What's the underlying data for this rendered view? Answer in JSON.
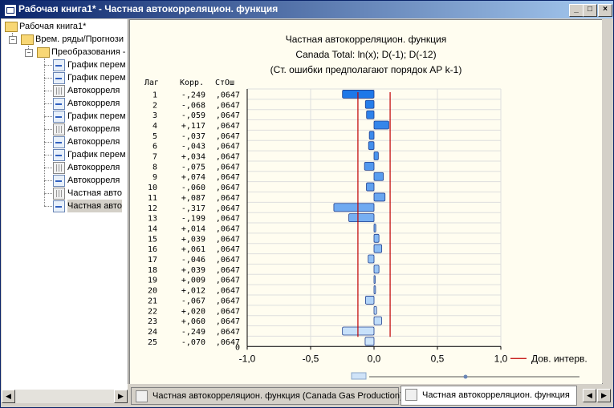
{
  "window": {
    "title": "Рабочая книга1* - Частная автокорреляцион. функция"
  },
  "tree": {
    "root": "Рабочая книга1*",
    "level1": "Врем. ряды/Прогнози",
    "level2": "Преобразования -",
    "items": [
      {
        "label": "График перем",
        "icon": "graph-icon"
      },
      {
        "label": "График перем",
        "icon": "graph-icon"
      },
      {
        "label": "Автокорреля",
        "icon": "spreadsheet-icon"
      },
      {
        "label": "Автокорреля",
        "icon": "graph-icon"
      },
      {
        "label": "График перем",
        "icon": "graph-icon"
      },
      {
        "label": "Автокорреля",
        "icon": "spreadsheet-icon"
      },
      {
        "label": "Автокорреля",
        "icon": "graph-icon"
      },
      {
        "label": "График перем",
        "icon": "graph-icon"
      },
      {
        "label": "Автокорреля",
        "icon": "spreadsheet-icon"
      },
      {
        "label": "Автокорреля",
        "icon": "graph-icon"
      },
      {
        "label": "Частная авто",
        "icon": "spreadsheet-icon"
      },
      {
        "label": "Частная авто",
        "icon": "graph-icon"
      }
    ]
  },
  "tabs": [
    {
      "label": "Частная автокорреляцион. функция (Canada Gas Production)"
    },
    {
      "label": "Частная автокорреляцион. функция"
    }
  ],
  "chart_data": {
    "type": "bar",
    "orientation": "horizontal",
    "title": "Частная автокорреляцион. функция",
    "subtitle": "Canada Total: ln(x); D(-1); D(-12)",
    "note": "(Ст. ошибки предполагают порядок АР k-1)",
    "table_headers": {
      "lag": "Лаг",
      "corr": "Корр.",
      "se": "СтОш"
    },
    "lags": [
      1,
      2,
      3,
      4,
      5,
      6,
      7,
      8,
      9,
      10,
      11,
      12,
      13,
      14,
      15,
      16,
      17,
      18,
      19,
      20,
      21,
      22,
      23,
      24,
      25
    ],
    "values": [
      -0.249,
      -0.068,
      -0.059,
      0.117,
      -0.037,
      -0.043,
      0.034,
      -0.075,
      0.074,
      -0.06,
      0.087,
      -0.317,
      -0.199,
      0.014,
      0.039,
      0.061,
      -0.046,
      0.039,
      0.009,
      0.012,
      -0.067,
      0.02,
      0.06,
      -0.249,
      -0.07
    ],
    "corr_labels": [
      "-,249",
      "-,068",
      "-,059",
      "+,117",
      "-,037",
      "-,043",
      "+,034",
      "-,075",
      "+,074",
      "-,060",
      "+,087",
      "-,317",
      "-,199",
      "+,014",
      "+,039",
      "+,061",
      "-,046",
      "+,039",
      "+,009",
      "+,012",
      "-,067",
      "+,020",
      "+,060",
      "-,249",
      "-,070"
    ],
    "se_labels": [
      ",0647",
      ",0647",
      ",0647",
      ",0647",
      ",0647",
      ",0647",
      ",0647",
      ",0647",
      ",0647",
      ",0647",
      ",0647",
      ",0647",
      ",0647",
      ",0647",
      ",0647",
      ",0647",
      ",0647",
      ",0647",
      ",0647",
      ",0647",
      ",0647",
      ",0647",
      ",0647",
      ",0647",
      ",0647"
    ],
    "zero_label": "0",
    "xlim": [
      -1.0,
      1.0
    ],
    "xticks": [
      -1.0,
      -0.5,
      0.0,
      0.5,
      1.0
    ],
    "xtick_labels": [
      "-1,0",
      "-0,5",
      "0,0",
      "0,5",
      "1,0"
    ],
    "confidence_limit": 0.127,
    "legend": {
      "label": "Дов. интерв.",
      "position": "bottom-right"
    },
    "colors": {
      "bar_dark": "#1e78e8",
      "bar_light": "#cfe6fb",
      "bar_border": "#1f3f8f",
      "conf": "#c00000",
      "grid": "#dedede"
    }
  }
}
